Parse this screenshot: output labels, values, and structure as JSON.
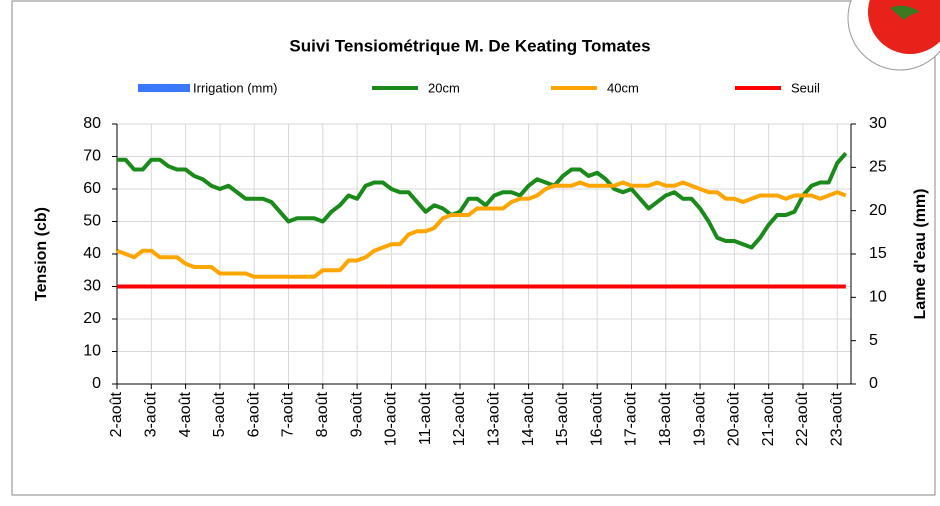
{
  "chart_data": {
    "type": "line",
    "title": "Suivi Tensiométrique M. De Keating Tomates",
    "y_label": "Tension (cb)",
    "y2_label": "Lame d'eau (mm)",
    "x": [
      2,
      2.25,
      2.5,
      2.75,
      3,
      3.25,
      3.5,
      3.75,
      4,
      4.25,
      4.5,
      4.75,
      5,
      5.25,
      5.5,
      5.75,
      6,
      6.25,
      6.5,
      6.75,
      7,
      7.25,
      7.5,
      7.75,
      8,
      8.25,
      8.5,
      8.75,
      9,
      9.25,
      9.5,
      9.75,
      10,
      10.25,
      10.5,
      10.75,
      11,
      11.25,
      11.5,
      11.75,
      12,
      12.25,
      12.5,
      12.75,
      13,
      13.25,
      13.5,
      13.75,
      14,
      14.25,
      14.5,
      14.75,
      15,
      15.25,
      15.5,
      15.75,
      16,
      16.25,
      16.5,
      16.75,
      17,
      17.25,
      17.5,
      17.75,
      18,
      18.25,
      18.5,
      18.75,
      19,
      19.25,
      19.5,
      19.75,
      20,
      20.25,
      20.5,
      20.75,
      21,
      21.25,
      21.5,
      21.75,
      22,
      22.25,
      22.5,
      22.75,
      23,
      23.25
    ],
    "xlim": [
      2,
      23.4
    ],
    "xticks": [
      {
        "value": 2,
        "label": "2-août"
      },
      {
        "value": 3,
        "label": "3-août"
      },
      {
        "value": 4,
        "label": "4-août"
      },
      {
        "value": 5,
        "label": "5-août"
      },
      {
        "value": 6,
        "label": "6-août"
      },
      {
        "value": 7,
        "label": "7-août"
      },
      {
        "value": 8,
        "label": "8-août"
      },
      {
        "value": 9,
        "label": "9-août"
      },
      {
        "value": 10,
        "label": "10-août"
      },
      {
        "value": 11,
        "label": "11-août"
      },
      {
        "value": 12,
        "label": "12-août"
      },
      {
        "value": 13,
        "label": "13-août"
      },
      {
        "value": 14,
        "label": "14-août"
      },
      {
        "value": 15,
        "label": "15-août"
      },
      {
        "value": 16,
        "label": "16-août"
      },
      {
        "value": 17,
        "label": "17-août"
      },
      {
        "value": 18,
        "label": "18-août"
      },
      {
        "value": 19,
        "label": "19-août"
      },
      {
        "value": 20,
        "label": "20-août"
      },
      {
        "value": 21,
        "label": "21-août"
      },
      {
        "value": 22,
        "label": "22-août"
      },
      {
        "value": 23,
        "label": "23-août"
      }
    ],
    "ylim": [
      0,
      80
    ],
    "yticks": [
      0,
      10,
      20,
      30,
      40,
      50,
      60,
      70,
      80
    ],
    "y2lim": [
      0,
      30
    ],
    "y2ticks": [
      0,
      5,
      10,
      15,
      20,
      25,
      30
    ],
    "grid": true,
    "series": [
      {
        "name": "Irrigation (mm)",
        "color": "#3b78ff",
        "axis": "y2",
        "kind": "bar",
        "values": [
          null,
          null,
          null,
          null,
          null,
          null,
          null,
          null,
          null,
          null,
          null,
          null,
          null,
          null,
          null,
          null,
          null,
          null,
          null,
          null,
          null,
          null,
          null,
          null,
          null,
          null,
          null,
          null,
          null,
          null,
          null,
          null,
          null,
          null,
          null,
          null,
          null,
          null,
          null,
          null,
          null,
          null,
          null,
          null,
          null,
          null,
          null,
          null,
          null,
          null,
          null,
          null,
          null,
          null,
          null,
          null,
          null,
          null,
          null,
          null,
          null,
          null,
          null,
          null,
          null,
          null,
          null,
          null,
          null,
          null,
          null,
          null,
          null,
          null,
          null,
          null,
          null,
          null,
          null,
          null,
          null,
          null,
          null,
          null,
          null,
          null
        ]
      },
      {
        "name": "20cm",
        "color": "#1a8a1a",
        "values": [
          69,
          69,
          66,
          66,
          69,
          69,
          67,
          66,
          66,
          64,
          63,
          61,
          60,
          61,
          59,
          57,
          57,
          57,
          56,
          53,
          50,
          51,
          51,
          51,
          50,
          53,
          55,
          58,
          57,
          61,
          62,
          62,
          60,
          59,
          59,
          56,
          53,
          55,
          54,
          52,
          53,
          57,
          57,
          55,
          58,
          59,
          59,
          58,
          61,
          63,
          62,
          61,
          64,
          66,
          66,
          64,
          65,
          63,
          60,
          59,
          60,
          57,
          54,
          56,
          58,
          59,
          57,
          57,
          54,
          50,
          45,
          44,
          44,
          43,
          42,
          45,
          49,
          52,
          52,
          53,
          58,
          61,
          62,
          62,
          68,
          71
        ]
      },
      {
        "name": "40cm",
        "color": "#ffa500",
        "values": [
          41,
          40,
          39,
          41,
          41,
          39,
          39,
          39,
          37,
          36,
          36,
          36,
          34,
          34,
          34,
          34,
          33,
          33,
          33,
          33,
          33,
          33,
          33,
          33,
          35,
          35,
          35,
          38,
          38,
          39,
          41,
          42,
          43,
          43,
          46,
          47,
          47,
          48,
          51,
          52,
          52,
          52,
          54,
          54,
          54,
          54,
          56,
          57,
          57,
          58,
          60,
          61,
          61,
          61,
          62,
          61,
          61,
          61,
          61,
          62,
          61,
          61,
          61,
          62,
          61,
          61,
          62,
          61,
          60,
          59,
          59,
          57,
          57,
          56,
          57,
          58,
          58,
          58,
          57,
          58,
          58,
          58,
          57,
          58,
          59,
          58
        ]
      },
      {
        "name": "Seuil",
        "color": "#ff0000",
        "values": [
          30,
          30,
          30,
          30,
          30,
          30,
          30,
          30,
          30,
          30,
          30,
          30,
          30,
          30,
          30,
          30,
          30,
          30,
          30,
          30,
          30,
          30,
          30,
          30,
          30,
          30,
          30,
          30,
          30,
          30,
          30,
          30,
          30,
          30,
          30,
          30,
          30,
          30,
          30,
          30,
          30,
          30,
          30,
          30,
          30,
          30,
          30,
          30,
          30,
          30,
          30,
          30,
          30,
          30,
          30,
          30,
          30,
          30,
          30,
          30,
          30,
          30,
          30,
          30,
          30,
          30,
          30,
          30,
          30,
          30,
          30,
          30,
          30,
          30,
          30,
          30,
          30,
          30,
          30,
          30,
          30,
          30,
          30,
          30,
          30,
          30
        ]
      }
    ]
  }
}
